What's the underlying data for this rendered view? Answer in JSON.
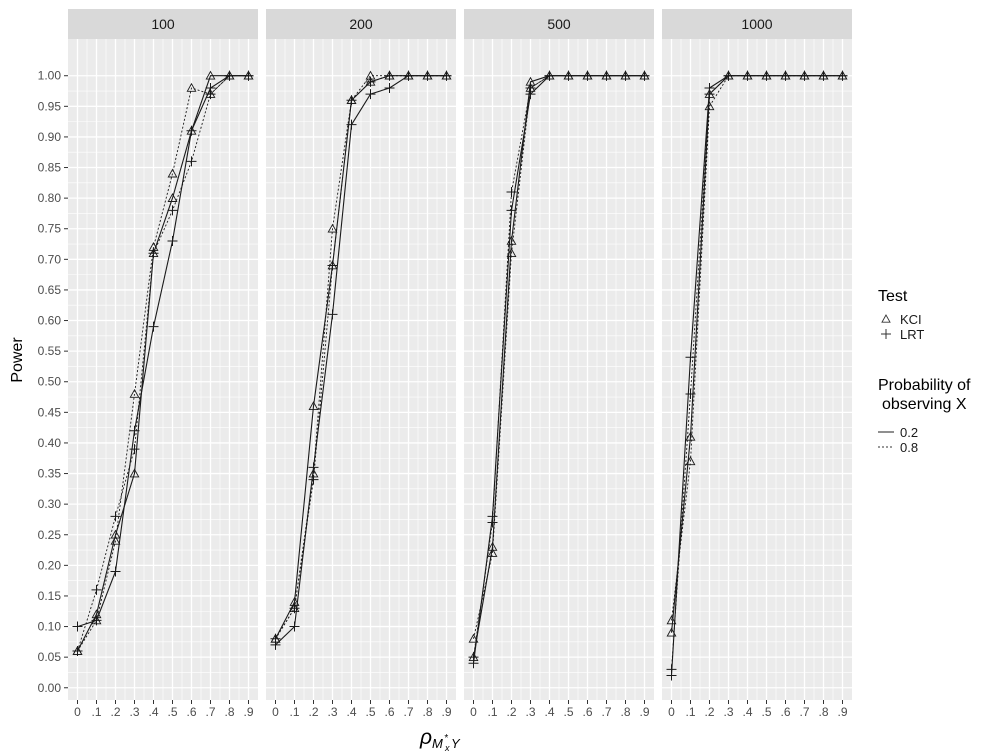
{
  "chart_data": {
    "type": "line",
    "ylabel": "Power",
    "xlabel": "ρ_{M*_x Y}",
    "x": [
      0,
      0.1,
      0.2,
      0.3,
      0.4,
      0.5,
      0.6,
      0.7,
      0.8,
      0.9
    ],
    "x_tick_labels": [
      "0",
      ".1",
      ".2",
      ".3",
      ".4",
      ".5",
      ".6",
      ".7",
      ".8",
      ".9"
    ],
    "y_ticks": [
      0,
      0.05,
      0.1,
      0.15,
      0.2,
      0.25,
      0.3,
      0.35,
      0.4,
      0.45,
      0.5,
      0.55,
      0.6,
      0.65,
      0.7,
      0.75,
      0.8,
      0.85,
      0.9,
      0.95,
      1.0
    ],
    "y_tick_labels": [
      "0.00",
      "0.05",
      "0.10",
      "0.15",
      "0.20",
      "0.25",
      "0.30",
      "0.35",
      "0.40",
      "0.45",
      "0.50",
      "0.55",
      "0.60",
      "0.65",
      "0.70",
      "0.75",
      "0.80",
      "0.85",
      "0.90",
      "0.95",
      "1.00"
    ],
    "ylim": [
      -0.02,
      1.06
    ],
    "xlim": [
      -0.05,
      0.95
    ],
    "grid": true,
    "colors": {
      "panel_bg": "#ebebeb",
      "strip_bg": "#d9d9d9",
      "grid": "#ffffff",
      "line": "#1a1a1a",
      "text": "#4d4d4d"
    },
    "legend": {
      "placement": "right",
      "test_title": "Test",
      "test_items": [
        {
          "label": "KCI",
          "shape": "triangle"
        },
        {
          "label": "LRT",
          "shape": "plus"
        }
      ],
      "prob_title_line1": "Probability of",
      "prob_title_line2": "observing X",
      "prob_items": [
        {
          "label": "0.2",
          "linetype": "solid"
        },
        {
          "label": "0.8",
          "linetype": "dotted"
        }
      ]
    },
    "panels": [
      {
        "label": "100",
        "series": [
          {
            "test": "KCI",
            "prob": "0.2",
            "values": [
              0.06,
              0.12,
              0.25,
              0.35,
              0.71,
              0.8,
              0.91,
              1.0,
              1.0,
              1.0
            ]
          },
          {
            "test": "KCI",
            "prob": "0.8",
            "values": [
              0.06,
              0.11,
              0.24,
              0.48,
              0.72,
              0.84,
              0.98,
              0.97,
              1.0,
              1.0
            ]
          },
          {
            "test": "LRT",
            "prob": "0.2",
            "values": [
              0.1,
              0.11,
              0.19,
              0.42,
              0.59,
              0.73,
              0.91,
              0.98,
              1.0,
              1.0
            ]
          },
          {
            "test": "LRT",
            "prob": "0.8",
            "values": [
              0.06,
              0.16,
              0.28,
              0.39,
              0.71,
              0.78,
              0.86,
              0.97,
              1.0,
              1.0
            ]
          }
        ]
      },
      {
        "label": "200",
        "series": [
          {
            "test": "KCI",
            "prob": "0.2",
            "values": [
              0.08,
              0.14,
              0.46,
              0.69,
              0.96,
              0.99,
              1.0,
              1.0,
              1.0,
              1.0
            ]
          },
          {
            "test": "KCI",
            "prob": "0.8",
            "values": [
              0.08,
              0.13,
              0.35,
              0.75,
              0.96,
              1.0,
              1.0,
              1.0,
              1.0,
              1.0
            ]
          },
          {
            "test": "LRT",
            "prob": "0.2",
            "values": [
              0.07,
              0.1,
              0.36,
              0.61,
              0.92,
              0.97,
              0.98,
              1.0,
              1.0,
              1.0
            ]
          },
          {
            "test": "LRT",
            "prob": "0.8",
            "values": [
              0.08,
              0.13,
              0.34,
              0.69,
              0.96,
              0.99,
              1.0,
              1.0,
              1.0,
              1.0
            ]
          }
        ]
      },
      {
        "label": "500",
        "series": [
          {
            "test": "KCI",
            "prob": "0.2",
            "values": [
              0.05,
              0.23,
              0.73,
              0.99,
              1.0,
              1.0,
              1.0,
              1.0,
              1.0,
              1.0
            ]
          },
          {
            "test": "KCI",
            "prob": "0.8",
            "values": [
              0.08,
              0.22,
              0.71,
              0.98,
              1.0,
              1.0,
              1.0,
              1.0,
              1.0,
              1.0
            ]
          },
          {
            "test": "LRT",
            "prob": "0.2",
            "values": [
              0.04,
              0.28,
              0.78,
              0.97,
              1.0,
              1.0,
              1.0,
              1.0,
              1.0,
              1.0
            ]
          },
          {
            "test": "LRT",
            "prob": "0.8",
            "values": [
              0.05,
              0.27,
              0.81,
              0.98,
              1.0,
              1.0,
              1.0,
              1.0,
              1.0,
              1.0
            ]
          }
        ]
      },
      {
        "label": "1000",
        "series": [
          {
            "test": "KCI",
            "prob": "0.2",
            "values": [
              0.09,
              0.41,
              0.97,
              1.0,
              1.0,
              1.0,
              1.0,
              1.0,
              1.0,
              1.0
            ]
          },
          {
            "test": "KCI",
            "prob": "0.8",
            "values": [
              0.11,
              0.37,
              0.95,
              1.0,
              1.0,
              1.0,
              1.0,
              1.0,
              1.0,
              1.0
            ]
          },
          {
            "test": "LRT",
            "prob": "0.2",
            "values": [
              0.02,
              0.54,
              0.98,
              1.0,
              1.0,
              1.0,
              1.0,
              1.0,
              1.0,
              1.0
            ]
          },
          {
            "test": "LRT",
            "prob": "0.8",
            "values": [
              0.03,
              0.48,
              0.97,
              1.0,
              1.0,
              1.0,
              1.0,
              1.0,
              1.0,
              1.0
            ]
          }
        ]
      }
    ]
  }
}
